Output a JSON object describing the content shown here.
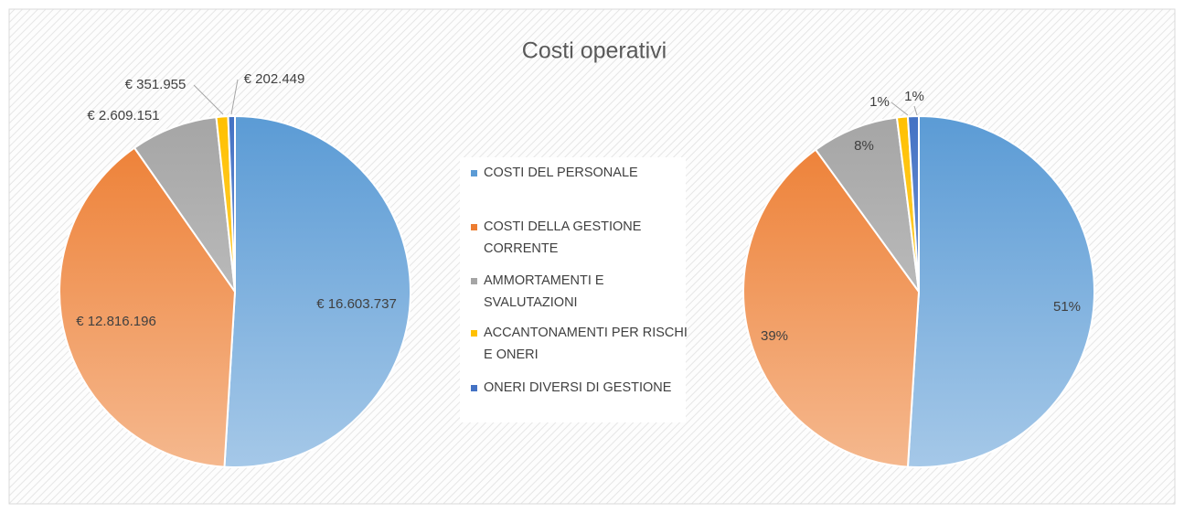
{
  "chart_data": [
    {
      "type": "pie",
      "title": "Costi operativi",
      "categories": [
        "COSTI DEL PERSONALE",
        "COSTI DELLA GESTIONE CORRENTE",
        "AMMORTAMENTI E SVALUTAZIONI",
        "ACCANTONAMENTI PER RISCHI E ONERI",
        "ONERI DIVERSI DI GESTIONE"
      ],
      "values": [
        16603737,
        12816196,
        2609151,
        351955,
        202449
      ],
      "value_labels": [
        "€ 16.603.737",
        "€ 12.816.196",
        "€ 2.609.151",
        "€ 351.955",
        "€ 202.449"
      ],
      "colors": [
        "#5b9bd5",
        "#ed7d31",
        "#a5a5a5",
        "#ffc000",
        "#4472c4"
      ]
    },
    {
      "type": "pie",
      "values": [
        51,
        39,
        8,
        1,
        1
      ],
      "value_labels": [
        "51%",
        "39%",
        "8%",
        "1%",
        "1%"
      ],
      "colors": [
        "#5b9bd5",
        "#ed7d31",
        "#a5a5a5",
        "#ffc000",
        "#4472c4"
      ]
    }
  ]
}
